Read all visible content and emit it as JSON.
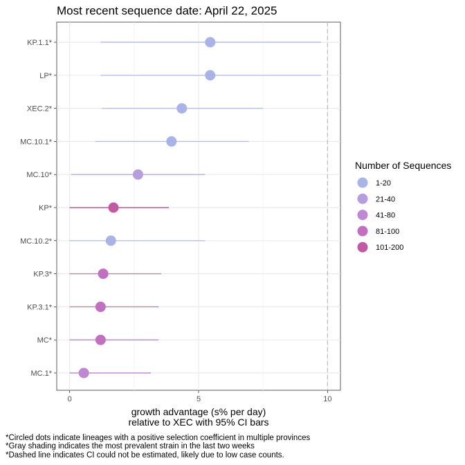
{
  "chart_data": {
    "type": "scatter",
    "title": "Most recent sequence date: April 22, 2025",
    "xlabel": [
      "growth advantage (s% per day)",
      "relative to  XEC  with 95% CI bars"
    ],
    "ylabel": "",
    "xlim": [
      -0.5,
      10.5
    ],
    "xticks": [
      0,
      5,
      10
    ],
    "dashed_line_x": 10,
    "grid": true,
    "categories": [
      "KP.1.1*",
      "LP*",
      "XEC.2*",
      "MC.10.1*",
      "MC.10*",
      "KP*",
      "MC.10.2*",
      "KP.3*",
      "KP.3.1*",
      "MC*",
      "MC.1*"
    ],
    "points": [
      {
        "label": "KP.1.1*",
        "x": 5.45,
        "lo": 1.2,
        "hi": 9.75,
        "group": "1-20"
      },
      {
        "label": "LP*",
        "x": 5.45,
        "lo": 1.2,
        "hi": 9.75,
        "group": "1-20"
      },
      {
        "label": "XEC.2*",
        "x": 4.35,
        "lo": 1.25,
        "hi": 7.5,
        "group": "1-20"
      },
      {
        "label": "MC.10.1*",
        "x": 3.95,
        "lo": 1.0,
        "hi": 6.95,
        "group": "1-20"
      },
      {
        "label": "MC.10*",
        "x": 2.65,
        "lo": 0.05,
        "hi": 5.25,
        "group": "21-40"
      },
      {
        "label": "KP*",
        "x": 1.7,
        "lo": 0.0,
        "hi": 3.85,
        "group": "101-200"
      },
      {
        "label": "MC.10.2*",
        "x": 1.6,
        "lo": 0.0,
        "hi": 5.25,
        "group": "1-20"
      },
      {
        "label": "KP.3*",
        "x": 1.3,
        "lo": 0.0,
        "hi": 3.55,
        "group": "81-100"
      },
      {
        "label": "KP.3.1*",
        "x": 1.2,
        "lo": 0.0,
        "hi": 3.45,
        "group": "81-100"
      },
      {
        "label": "MC*",
        "x": 1.2,
        "lo": 0.0,
        "hi": 3.45,
        "group": "81-100"
      },
      {
        "label": "MC.1*",
        "x": 0.55,
        "lo": 0.0,
        "hi": 3.15,
        "group": "41-80"
      }
    ],
    "legend": {
      "title": "Number of Sequences",
      "placement": "right",
      "items": [
        {
          "label": "1-20",
          "color": "#aab3e6"
        },
        {
          "label": "21-40",
          "color": "#b69ddb"
        },
        {
          "label": "41-80",
          "color": "#bf88d2"
        },
        {
          "label": "81-100",
          "color": "#c070bf"
        },
        {
          "label": "101-200",
          "color": "#c15aa5"
        }
      ]
    },
    "line_colors": {
      "1-20": "#b4bfe3",
      "21-40": "#b8a8e0",
      "41-80": "#c28ad6",
      "81-100": "#c77ac6",
      "101-200": "#c4559f"
    },
    "footnotes": [
      "*Circled dots indicate lineages with a positive selection coefficient in multiple provinces",
      "*Gray shading indicates the most prevalent strain in the last two weeks",
      "*Dashed line indicates CI could not be estimated, likely due to low case counts."
    ]
  }
}
